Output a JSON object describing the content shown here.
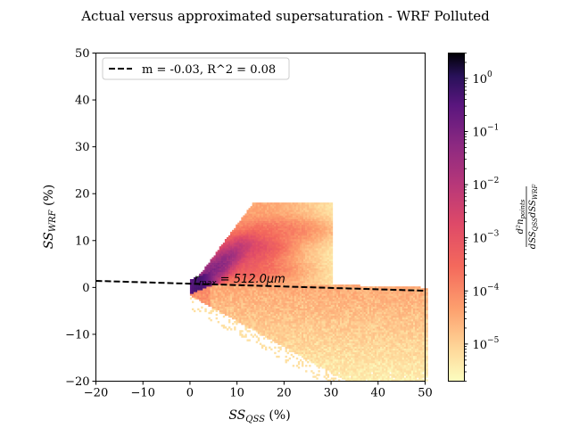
{
  "chart_data": {
    "type": "heatmap",
    "title": "Actual versus approximated supersaturation - WRF Polluted",
    "xlabel": {
      "base": "SS",
      "sub": "QSS",
      "suffix": " (%)"
    },
    "ylabel": {
      "base": "SS",
      "sub": "WRF",
      "suffix": " (%)"
    },
    "xlim": [
      -20,
      50
    ],
    "ylim": [
      -20,
      50
    ],
    "x_ticks": [
      -20,
      -10,
      0,
      10,
      20,
      30,
      40,
      50
    ],
    "y_ticks": [
      -20,
      -10,
      0,
      10,
      20,
      30,
      40,
      50
    ],
    "x_tick_labels": [
      "−20",
      "−10",
      "0",
      "10",
      "20",
      "30",
      "40",
      "50"
    ],
    "y_tick_labels": [
      "−20",
      "−10",
      "0",
      "10",
      "20",
      "30",
      "40",
      "50"
    ],
    "grid": false,
    "legend": {
      "position": "upper-left",
      "entries": [
        "m = -0.03, R^2 = 0.08"
      ]
    },
    "fit_line": {
      "slope": -0.03,
      "intercept": 0.8,
      "style": "dashed",
      "color": "#000000",
      "label": "m = -0.03, R^2 = 0.08"
    },
    "annotation": {
      "text": "r",
      "sub": "max",
      "after": " = 512.0μm",
      "x": 0.5,
      "y": 0.8
    },
    "colorbar": {
      "scale": "log",
      "range": [
        2e-06,
        3
      ],
      "cmap": "magma_r",
      "ticks": [
        1e-05,
        0.0001,
        0.001,
        0.01,
        0.1,
        1
      ],
      "tick_labels": [
        {
          "base": "10",
          "exp": "−5"
        },
        {
          "base": "10",
          "exp": "−4"
        },
        {
          "base": "10",
          "exp": "−3"
        },
        {
          "base": "10",
          "exp": "−2"
        },
        {
          "base": "10",
          "exp": "−1"
        },
        {
          "base": "10",
          "exp": "0"
        }
      ],
      "label": {
        "num": "d²n",
        "num_sub": "points",
        "den": "dSS",
        "den_sub1": "QSS",
        "den_mid": "dSS",
        "den_sub2": "WRF"
      }
    }
  }
}
